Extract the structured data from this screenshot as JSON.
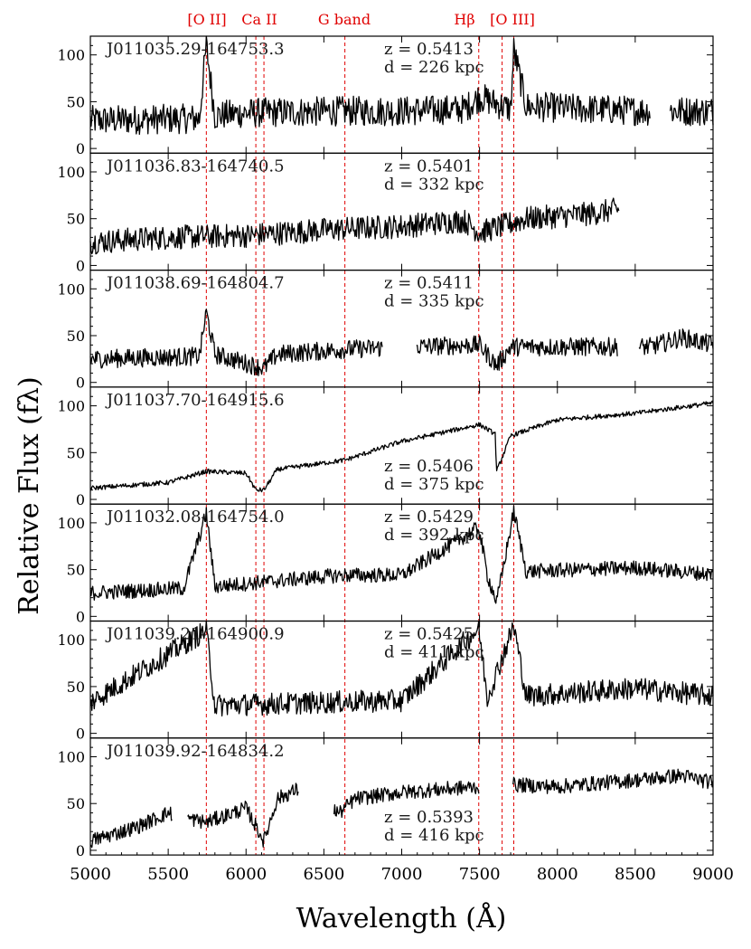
{
  "chart_data": {
    "type": "line",
    "xlabel": "Wavelength (Å)",
    "ylabel": "Relative Flux (fλ)",
    "xlim": [
      5000,
      9000
    ],
    "ylim": [
      -5,
      120
    ],
    "x_ticks": [
      5000,
      5500,
      6000,
      6500,
      7000,
      7500,
      8000,
      8500,
      9000
    ],
    "y_ticks": [
      0,
      50,
      100
    ],
    "grid": false,
    "line_colors": {
      "spectrum": "#000000",
      "markers": "#e00000"
    },
    "spectral_lines": [
      {
        "label": "[O II]",
        "wavelengths": [
          5745
        ]
      },
      {
        "label": "Ca II",
        "wavelengths": [
          6063,
          6115
        ]
      },
      {
        "label": "G band",
        "wavelengths": [
          6635
        ]
      },
      {
        "label": "Hβ",
        "wavelengths": [
          7495
        ]
      },
      {
        "label": "[O III]",
        "wavelengths": [
          7645,
          7720
        ]
      }
    ],
    "panels": [
      {
        "name": "J011035.29-164753.3",
        "z": "z = 0.5413",
        "d": "d = 226 kpc",
        "ann_pos": "top",
        "base": [
          [
            5000,
            30
          ],
          [
            5700,
            32
          ],
          [
            5745,
            110
          ],
          [
            5800,
            35
          ],
          [
            6000,
            38
          ],
          [
            6600,
            40
          ],
          [
            7000,
            40
          ],
          [
            7400,
            42
          ],
          [
            7500,
            55
          ],
          [
            7700,
            42
          ],
          [
            7720,
            105
          ],
          [
            7800,
            45
          ],
          [
            8200,
            42
          ],
          [
            8600,
            40
          ]
        ],
        "noise": 16,
        "gaps": [
          [
            8600,
            8720
          ]
        ]
      },
      {
        "name": "J011036.83-164740.5",
        "z": "z = 0.5401",
        "d": "d = 332 kpc",
        "ann_pos": "top",
        "base": [
          [
            5000,
            25
          ],
          [
            5500,
            30
          ],
          [
            6000,
            32
          ],
          [
            6500,
            38
          ],
          [
            7000,
            42
          ],
          [
            7400,
            48
          ],
          [
            7500,
            35
          ],
          [
            7800,
            50
          ],
          [
            8200,
            55
          ],
          [
            8400,
            60
          ]
        ],
        "noise": 13,
        "gaps": [
          [
            8400,
            9000
          ]
        ]
      },
      {
        "name": "J011038.69-164804.7",
        "z": "z = 0.5411",
        "d": "d = 335 kpc",
        "ann_pos": "top",
        "base": [
          [
            5000,
            25
          ],
          [
            5700,
            28
          ],
          [
            5745,
            75
          ],
          [
            5800,
            30
          ],
          [
            6115,
            15
          ],
          [
            6200,
            30
          ],
          [
            6600,
            35
          ],
          [
            7000,
            38
          ],
          [
            7500,
            40
          ],
          [
            7610,
            18
          ],
          [
            7700,
            38
          ],
          [
            8400,
            38
          ],
          [
            8600,
            38
          ],
          [
            8800,
            48
          ],
          [
            9000,
            40
          ]
        ],
        "noise": 10,
        "gaps": [
          [
            6880,
            7090
          ],
          [
            8390,
            8520
          ]
        ]
      },
      {
        "name": "J011037.70-164915.6",
        "z": "z = 0.5406",
        "d": "d = 375 kpc",
        "ann_pos": "bottom",
        "base": [
          [
            5000,
            12
          ],
          [
            5500,
            18
          ],
          [
            5745,
            30
          ],
          [
            6000,
            28
          ],
          [
            6063,
            10
          ],
          [
            6115,
            10
          ],
          [
            6200,
            32
          ],
          [
            6635,
            42
          ],
          [
            7000,
            62
          ],
          [
            7500,
            80
          ],
          [
            7600,
            70
          ],
          [
            7610,
            30
          ],
          [
            7700,
            68
          ],
          [
            8000,
            85
          ],
          [
            8500,
            92
          ],
          [
            9000,
            103
          ]
        ],
        "noise": 2.5,
        "gaps": []
      },
      {
        "name": "J011032.08-164754.0",
        "z": "z = 0.5429",
        "d": "d = 392 kpc",
        "ann_pos": "top",
        "base": [
          [
            5000,
            25
          ],
          [
            5600,
            30
          ],
          [
            5745,
            110
          ],
          [
            5800,
            32
          ],
          [
            6200,
            38
          ],
          [
            6600,
            44
          ],
          [
            7000,
            44
          ],
          [
            7495,
            95
          ],
          [
            7550,
            44
          ],
          [
            7610,
            15
          ],
          [
            7720,
            112
          ],
          [
            7800,
            48
          ],
          [
            8500,
            52
          ],
          [
            9000,
            45
          ]
        ],
        "noise": 8,
        "gaps": []
      },
      {
        "name": "J011039.21-164900.9",
        "z": "z = 0.5425",
        "d": "d = 411 kpc",
        "ann_pos": "top",
        "base": [
          [
            5000,
            33
          ],
          [
            5745,
            110
          ],
          [
            5800,
            30
          ],
          [
            6500,
            33
          ],
          [
            7000,
            35
          ],
          [
            7495,
            112
          ],
          [
            7550,
            38
          ],
          [
            7720,
            115
          ],
          [
            7800,
            40
          ],
          [
            8500,
            48
          ],
          [
            9000,
            40
          ]
        ],
        "noise": 12,
        "gaps": []
      },
      {
        "name": "J011039.92-164834.2",
        "z": "z = 0.5393",
        "d": "d = 416 kpc",
        "ann_pos": "bottom",
        "base": [
          [
            5000,
            10
          ],
          [
            5300,
            25
          ],
          [
            5500,
            40
          ],
          [
            5600,
            35
          ],
          [
            5745,
            30
          ],
          [
            6000,
            45
          ],
          [
            6115,
            10
          ],
          [
            6200,
            55
          ],
          [
            6330,
            65
          ],
          [
            6600,
            40
          ],
          [
            6700,
            55
          ],
          [
            7000,
            62
          ],
          [
            7495,
            68
          ],
          [
            7720,
            70
          ],
          [
            8000,
            68
          ],
          [
            8500,
            75
          ],
          [
            8800,
            80
          ],
          [
            9000,
            72
          ]
        ],
        "noise": 8,
        "gaps": [
          [
            5530,
            5620
          ],
          [
            6340,
            6560
          ],
          [
            7500,
            7710
          ]
        ]
      }
    ]
  }
}
